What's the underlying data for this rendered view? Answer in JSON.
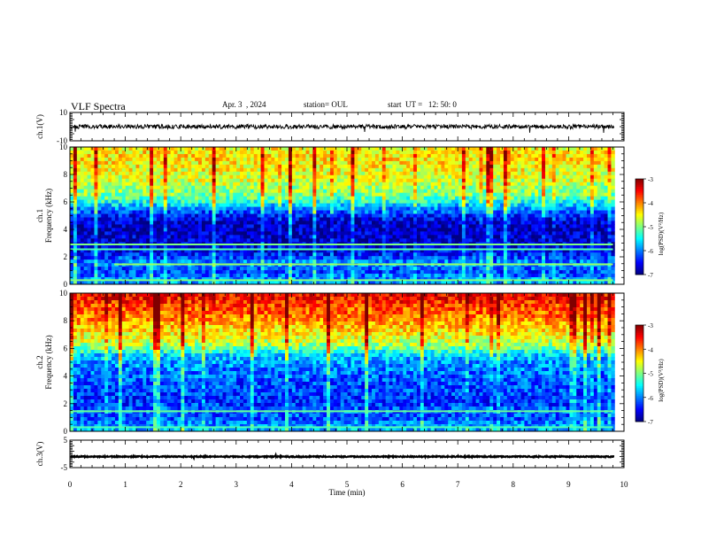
{
  "header": {
    "title": "VLF Spectra",
    "date": "Apr. 3  , 2024",
    "station": "station= OUL",
    "start": "start  UT =   12: 50: 0"
  },
  "chart_data": [
    {
      "type": "line",
      "panel": "ch1_waveform",
      "ylabel": "ch.1(V)",
      "ylim": [
        -10,
        10
      ],
      "ytick_labels": [
        "10",
        "-10"
      ],
      "xlim": [
        0,
        10
      ],
      "data_end_min": 9.83,
      "baseline_v": 0,
      "noise_amplitude_v": 1.5,
      "color": "#000000"
    },
    {
      "type": "heatmap",
      "panel": "ch1_spectrogram",
      "ylabel_line1": "ch.1",
      "ylabel_line2": "Frequency (kHz)",
      "ylim": [
        0,
        10
      ],
      "ytick_labels": [
        "10",
        "8",
        "6",
        "4",
        "2",
        "0"
      ],
      "xlim": [
        0,
        10
      ],
      "data_end_min": 9.83,
      "colorbar": {
        "min": -7,
        "max": -3,
        "tick_labels": [
          "-3",
          "-4",
          "-5",
          "-6",
          "-7"
        ],
        "label": "log(PSD)(V²/Hz)"
      },
      "profile_khz": [
        0,
        0.5,
        1.0,
        1.5,
        2.0,
        2.5,
        3.0,
        3.5,
        4.0,
        4.5,
        5.0,
        5.5,
        6.0,
        6.5,
        7.0,
        7.5,
        8.0,
        8.5,
        9.0,
        9.5,
        10.0
      ],
      "profile_log_psd": [
        -5.8,
        -6.0,
        -6.3,
        -5.9,
        -6.3,
        -6.6,
        -6.7,
        -6.7,
        -6.8,
        -6.7,
        -6.4,
        -6.0,
        -5.4,
        -5.0,
        -4.9,
        -4.7,
        -4.6,
        -4.5,
        -4.4,
        -4.4,
        -4.5
      ],
      "tones": [
        {
          "khz": 1.45,
          "log_psd": -4.9,
          "t_start": 0.8,
          "t_end": 9.8
        },
        {
          "khz": 2.9,
          "log_psd": -5.0,
          "t_start": 0,
          "t_end": 9.8
        },
        {
          "khz": 2.55,
          "log_psd": -5.2,
          "t_start": 0,
          "t_end": 9.8
        },
        {
          "khz": 0.3,
          "log_psd": -5.0,
          "t_start": 0,
          "t_end": 9.8
        }
      ]
    },
    {
      "type": "heatmap",
      "panel": "ch2_spectrogram",
      "ylabel_line1": "ch.2",
      "ylabel_line2": "Frequency (kHz)",
      "ylim": [
        0,
        10
      ],
      "ytick_labels": [
        "10",
        "8",
        "6",
        "4",
        "2",
        "0"
      ],
      "xlim": [
        0,
        10
      ],
      "data_end_min": 9.83,
      "colorbar": {
        "min": -7,
        "max": -3,
        "tick_labels": [
          "-3",
          "-4",
          "-5",
          "-6",
          "-7"
        ],
        "label": "log(PSD)(V²/Hz)"
      },
      "profile_khz": [
        0,
        0.5,
        1.0,
        1.5,
        2.0,
        2.5,
        3.0,
        3.5,
        4.0,
        4.5,
        5.0,
        5.5,
        6.0,
        6.5,
        7.0,
        7.5,
        8.0,
        8.5,
        9.0,
        9.5,
        10.0
      ],
      "profile_log_psd": [
        -5.7,
        -6.0,
        -6.2,
        -6.1,
        -6.3,
        -6.3,
        -6.2,
        -6.2,
        -6.1,
        -6.0,
        -5.9,
        -5.7,
        -5.1,
        -4.7,
        -4.5,
        -4.3,
        -4.1,
        -3.9,
        -3.8,
        -3.6,
        -3.5
      ],
      "tones": [
        {
          "khz": 1.45,
          "log_psd": -5.1,
          "t_start": 0,
          "t_end": 9.8
        },
        {
          "khz": 0.3,
          "log_psd": -5.2,
          "t_start": 0,
          "t_end": 9.8
        }
      ]
    },
    {
      "type": "line",
      "panel": "ch3_waveform",
      "ylabel": "ch.3(V)",
      "ylim": [
        -5,
        5
      ],
      "ytick_labels": [
        "5",
        "-5"
      ],
      "xlim": [
        0,
        10
      ],
      "data_end_min": 9.83,
      "baseline_v": -1,
      "noise_amplitude_v": 0.2,
      "color": "#000000"
    }
  ],
  "xaxis": {
    "label": "Time (min)",
    "tick_labels": [
      "0",
      "1",
      "2",
      "3",
      "4",
      "5",
      "6",
      "7",
      "8",
      "9",
      "10"
    ]
  }
}
